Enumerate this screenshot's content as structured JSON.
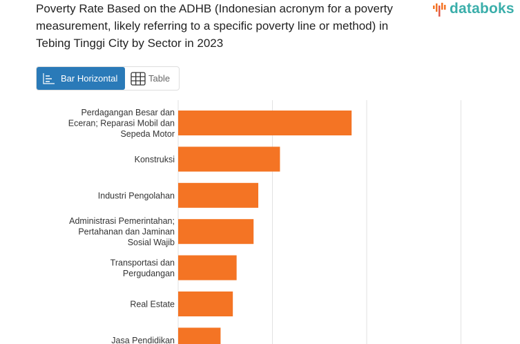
{
  "title": "Poverty Rate Based on the ADHB (Indonesian acronym for a poverty measurement, likely referring to a specific poverty line or method) in Tebing Tinggi City by Sector in 2023",
  "logo": {
    "text": "databoks",
    "brand_color": "#3aaeaa"
  },
  "view_toggle": {
    "bar_label": "Bar Horizontal",
    "table_label": "Table",
    "active": "bar",
    "active_color": "#2a7ab8"
  },
  "chart_data": {
    "type": "bar",
    "orientation": "horizontal",
    "bar_color": "#f47424",
    "grid": true,
    "categories": [
      [
        "Perdagangan Besar dan",
        "Eceran; Reparasi Mobil dan",
        "Sepeda Motor"
      ],
      [
        "Konstruksi"
      ],
      [
        "Industri Pengolahan"
      ],
      [
        "Administrasi Pemerintahan;",
        "Pertahanan dan Jaminan",
        "Sosial Wajib"
      ],
      [
        "Transportasi dan",
        "Pergudangan"
      ],
      [
        "Real Estate"
      ],
      [
        "Jasa Pendidikan"
      ]
    ],
    "values": [
      1.84,
      1.08,
      0.85,
      0.8,
      0.62,
      0.58,
      0.45
    ],
    "xlim": [
      0,
      3
    ]
  }
}
